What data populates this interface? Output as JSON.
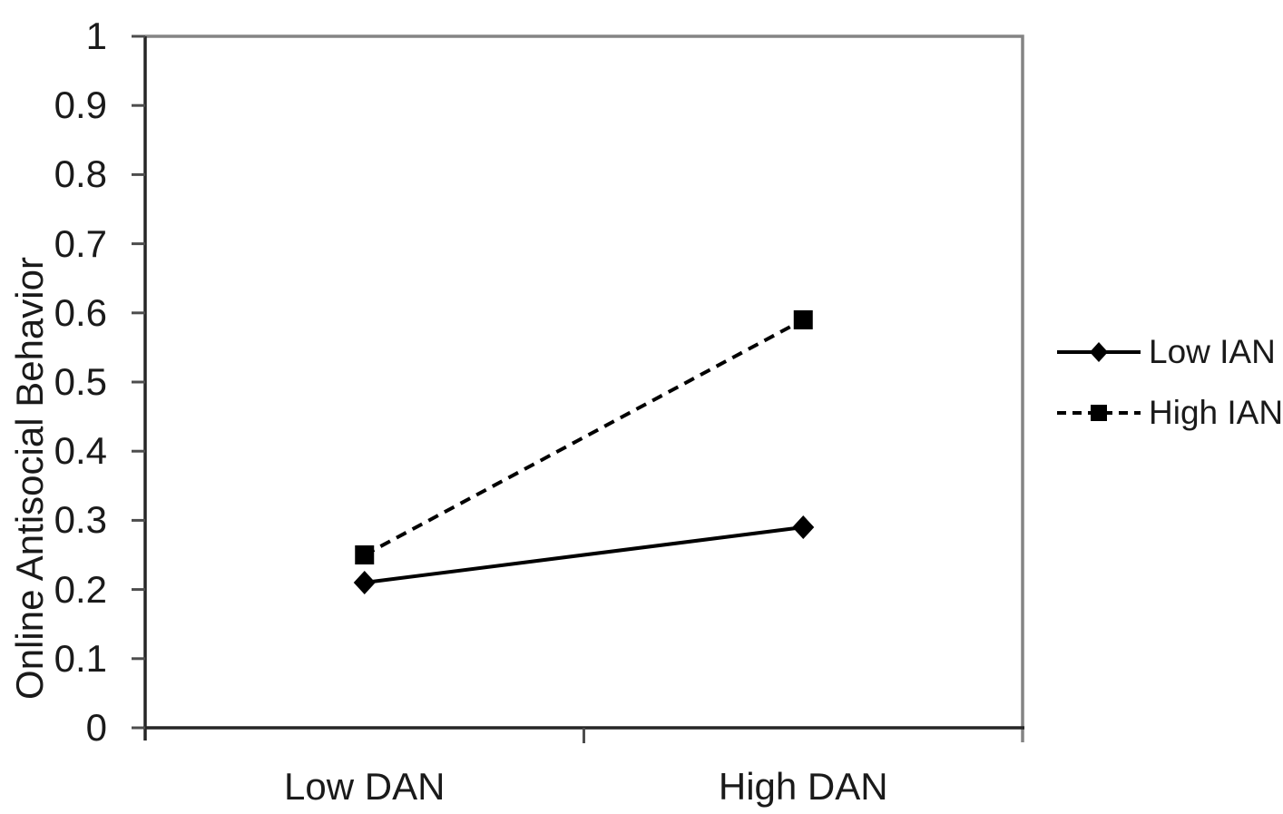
{
  "chart_data": {
    "type": "line",
    "title": "",
    "categories": [
      "Low DAN",
      "High DAN"
    ],
    "series": [
      {
        "name": "Low IAN",
        "values": [
          0.21,
          0.29
        ],
        "line_style": "solid",
        "marker": "diamond",
        "color": "#000000"
      },
      {
        "name": "High IAN",
        "values": [
          0.25,
          0.59
        ],
        "line_style": "dashed",
        "marker": "square",
        "color": "#000000"
      }
    ],
    "xlabel": "",
    "ylabel": "Online Antisocial Behavior",
    "ylim": [
      0,
      1
    ],
    "y_tick_step": 0.1,
    "y_tick_labels": [
      "0",
      "0.1",
      "0.2",
      "0.3",
      "0.4",
      "0.5",
      "0.6",
      "0.7",
      "0.8",
      "0.9",
      "1"
    ],
    "grid": false,
    "legend_position": "right"
  },
  "colors": {
    "background": "#ffffff",
    "text": "#1a1a1a",
    "axis": "#262626",
    "tick": "#4d4d4d",
    "plot_border": "#848484",
    "series_line": "#000000"
  }
}
